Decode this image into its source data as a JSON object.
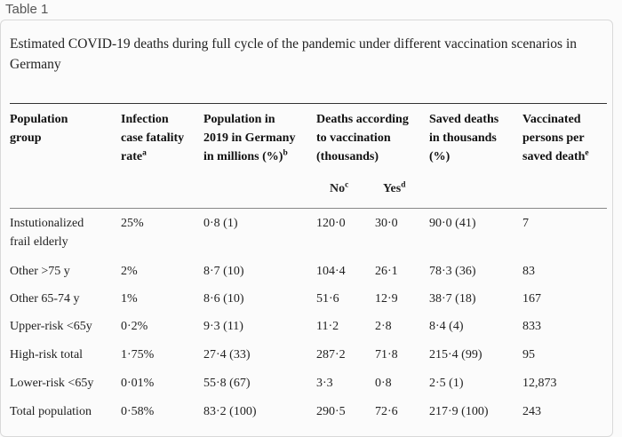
{
  "tab": {
    "label": "Table 1"
  },
  "caption": "Estimated COVID-19 deaths during full cycle of the pandemic under different vaccination scenarios in Germany",
  "headers": {
    "population_group": [
      "Population",
      "group"
    ],
    "ifr": [
      "Infection",
      "case fatality",
      "rate"
    ],
    "ifr_sup": "a",
    "population": [
      "Population in",
      "2019 in Germany",
      "in millions (%)"
    ],
    "population_sup": "b",
    "deaths": [
      "Deaths according",
      "to vaccination",
      "(thousands)"
    ],
    "deaths_no": "No",
    "deaths_no_sup": "c",
    "deaths_yes": "Yes",
    "deaths_yes_sup": "d",
    "saved": [
      "Saved deaths",
      "in thousands",
      "(%)"
    ],
    "vaccinated": [
      "Vaccinated",
      "persons per",
      "saved death"
    ],
    "vaccinated_sup": "e"
  },
  "rows": [
    {
      "group": [
        "Instutionalized",
        "frail elderly"
      ],
      "ifr": "25%",
      "population": "0·8 (1)",
      "no": "120·0",
      "yes": "30·0",
      "saved": "90·0 (41)",
      "vaccinated": "7"
    },
    {
      "group": [
        "Other >75 y"
      ],
      "ifr": "2%",
      "population": "8·7 (10)",
      "no": "104·4",
      "yes": "26·1",
      "saved": "78·3 (36)",
      "vaccinated": "83"
    },
    {
      "group": [
        "Other 65-74 y"
      ],
      "ifr": "1%",
      "population": "8·6 (10)",
      "no": "51·6",
      "yes": "12·9",
      "saved": "38·7 (18)",
      "vaccinated": "167"
    },
    {
      "group": [
        "Upper-risk <65y"
      ],
      "ifr": "0·2%",
      "population": "9·3 (11)",
      "no": "11·2",
      "yes": "2·8",
      "saved": "8·4 (4)",
      "vaccinated": "833"
    },
    {
      "group": [
        "High-risk total"
      ],
      "ifr": "1·75%",
      "population": "27·4 (33)",
      "no": "287·2",
      "yes": "71·8",
      "saved": "215·4 (99)",
      "vaccinated": "95"
    },
    {
      "group": [
        "Lower-risk <65y"
      ],
      "ifr": "0·01%",
      "population": "55·8 (67)",
      "no": "3·3",
      "yes": "0·8",
      "saved": "2·5 (1)",
      "vaccinated": "12,873"
    },
    {
      "group": [
        "Total population"
      ],
      "ifr": "0·58%",
      "population": "83·2 (100)",
      "no": "290·5",
      "yes": "72·6",
      "saved": "217·9 (100)",
      "vaccinated": "243"
    }
  ]
}
